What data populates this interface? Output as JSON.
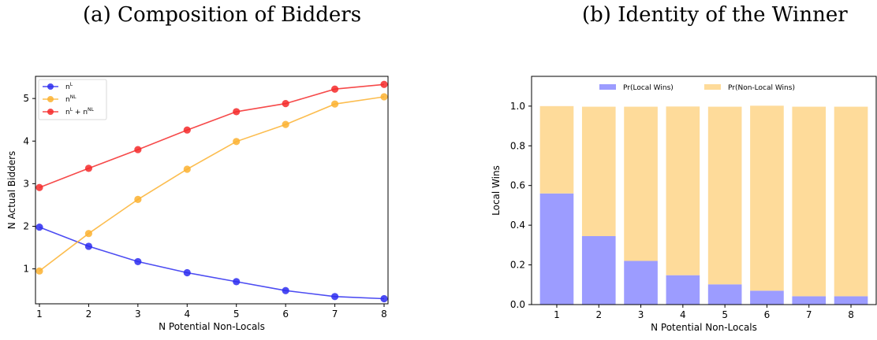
{
  "panel_a": {
    "title": "(a) Composition of Bidders"
  },
  "panel_b": {
    "title": "(b) Identity of the Winner"
  },
  "chart_data": [
    {
      "type": "line",
      "title": "(a) Composition of Bidders",
      "xlabel": "N Potential Non-Locals",
      "ylabel": "N Actual Bidders",
      "x": [
        1,
        2,
        3,
        4,
        5,
        6,
        7,
        8
      ],
      "xticks": [
        "1",
        "2",
        "3",
        "4",
        "5",
        "6",
        "7",
        "8"
      ],
      "yticks": [
        "1",
        "2",
        "3",
        "4",
        "5"
      ],
      "xlim": [
        0.92,
        8.08
      ],
      "ylim": [
        0.18,
        5.52
      ],
      "legend": "top-left",
      "grid": false,
      "series": [
        {
          "name": "n^L",
          "legend_base": "n",
          "legend_sup": "L",
          "legend_rest": "",
          "color": "#2d2df0",
          "values": [
            1.98,
            1.53,
            1.17,
            0.91,
            0.7,
            0.49,
            0.35,
            0.3
          ]
        },
        {
          "name": "n^NL",
          "legend_base": "n",
          "legend_sup": "NL",
          "legend_rest": "",
          "color": "#fbb130",
          "values": [
            0.95,
            1.83,
            2.63,
            3.34,
            3.99,
            4.39,
            4.87,
            5.04
          ]
        },
        {
          "name": "n^L + n^NL",
          "legend_base": "n",
          "legend_sup": "L",
          "legend_rest": " + n",
          "legend_sup2": "NL",
          "color": "#f42a2a",
          "values": [
            2.91,
            3.36,
            3.8,
            4.26,
            4.69,
            4.88,
            5.22,
            5.33
          ]
        }
      ]
    },
    {
      "type": "bar",
      "stacked": true,
      "title": "(b) Identity of the Winner",
      "xlabel": "N Potential Non-Locals",
      "ylabel": "Local Wins",
      "categories": [
        "1",
        "2",
        "3",
        "4",
        "5",
        "6",
        "7",
        "8"
      ],
      "yticks": [
        "0.0",
        "0.2",
        "0.4",
        "0.6",
        "0.8",
        "1.0"
      ],
      "ylim": [
        0,
        1.15
      ],
      "legend": "top-center",
      "grid": false,
      "series": [
        {
          "name": "Pr(Local Wins)",
          "color": "#9c9cff",
          "values": [
            0.56,
            0.345,
            0.22,
            0.148,
            0.102,
            0.07,
            0.042,
            0.042
          ]
        },
        {
          "name": "Pr(Non-Local Wins)",
          "color": "#fedb9a",
          "values": [
            0.44,
            0.652,
            0.777,
            0.85,
            0.895,
            0.932,
            0.955,
            0.955
          ]
        }
      ]
    }
  ]
}
